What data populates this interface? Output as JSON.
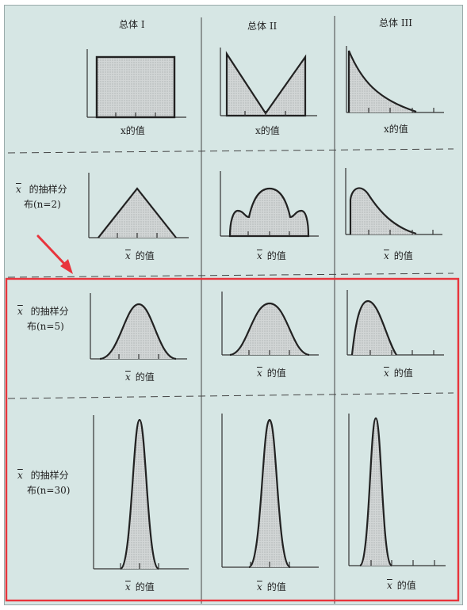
{
  "headers": [
    "总体 I",
    "总体 II",
    "总体 III"
  ],
  "axis_labels": {
    "row1": "x的值",
    "other_rows": "的值",
    "xbar_symbol": "x"
  },
  "rows": [
    {
      "label_line1": "",
      "label_line2": ""
    },
    {
      "label_line1": "的抽样分",
      "label_line2": "布(n=2)"
    },
    {
      "label_line1": "的抽样分",
      "label_line2": "布(n=5)"
    },
    {
      "label_line1": "的抽样分",
      "label_line2": "布(n=30)"
    }
  ],
  "colors": {
    "background": "#d6e6e4",
    "highlight_box": "#e8343c",
    "arrow": "#e8343c",
    "curve": "#222222",
    "fill": "#c9cccc"
  }
}
